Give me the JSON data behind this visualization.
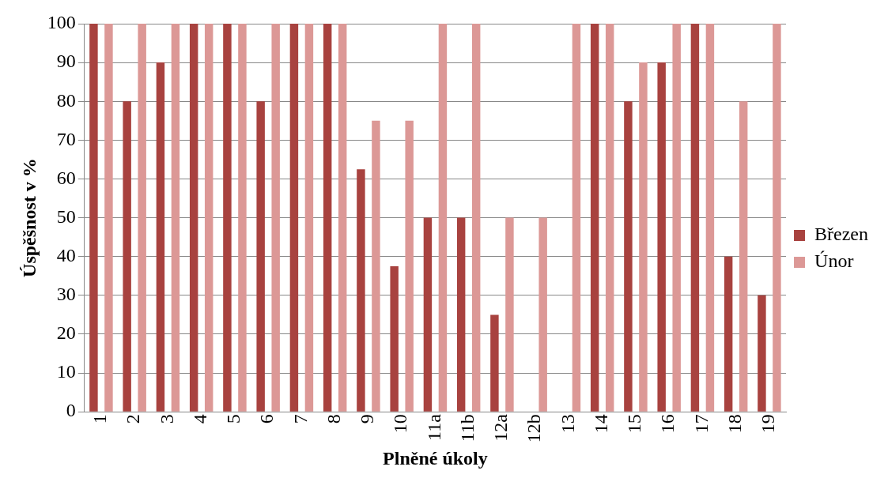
{
  "chart_data": {
    "type": "bar",
    "xlabel": "Plněné úkoly",
    "ylabel": "Úspěšnost v %",
    "categories": [
      "1",
      "2",
      "3",
      "4",
      "5",
      "6",
      "7",
      "8",
      "9",
      "10",
      "11a",
      "11b",
      "12a",
      "12b",
      "13",
      "14",
      "15",
      "16",
      "17",
      "18",
      "19"
    ],
    "series": [
      {
        "name": "Březen",
        "color": "#a8423f",
        "values": [
          100,
          80,
          90,
          100,
          100,
          80,
          100,
          100,
          62.5,
          37.5,
          50,
          50,
          25,
          0,
          0,
          100,
          80,
          90,
          100,
          40,
          30
        ]
      },
      {
        "name": "Únor",
        "color": "#dc9896",
        "values": [
          100,
          100,
          100,
          100,
          100,
          100,
          100,
          100,
          75,
          75,
          100,
          100,
          50,
          50,
          100,
          100,
          90,
          100,
          100,
          80,
          100
        ]
      }
    ],
    "ylim": [
      0,
      100
    ],
    "yticks": [
      0,
      10,
      20,
      30,
      40,
      50,
      60,
      70,
      80,
      90,
      100
    ],
    "grid": "y",
    "legend": "right"
  }
}
